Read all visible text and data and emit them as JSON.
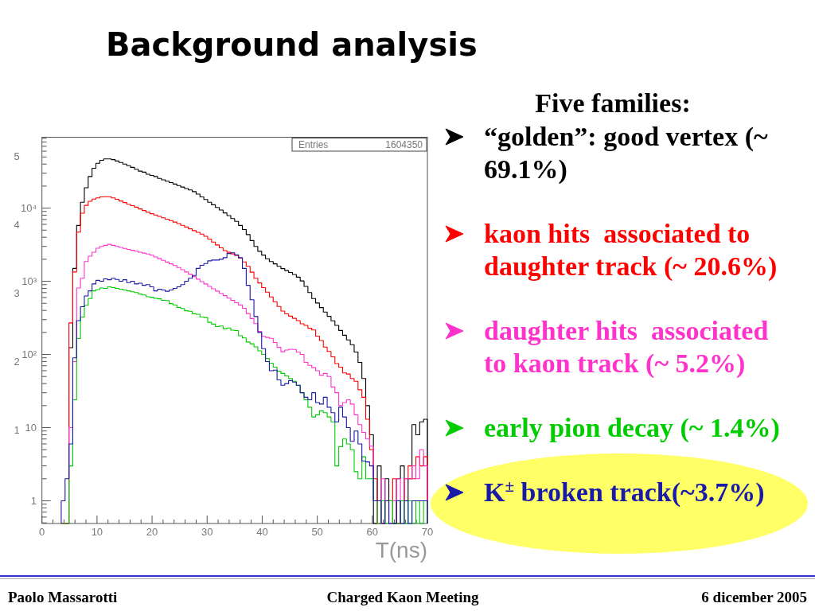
{
  "chart_data": {
    "type": "histogram",
    "title": "Background analysis",
    "xlabel": "T(ns)",
    "legend_title": "Five families:",
    "legend": "right",
    "log": true,
    "annotations": [
      "Entries",
      "1604350",
      "Paolo Massarotti",
      "Charged Kaon Meeting",
      "6 dicember 2005"
    ],
    "xlim": [
      0,
      70
    ],
    "ylim": [
      0.49,
      93000
    ],
    "y2lim": [
      -0.36,
      5.28
    ],
    "y2ticks": [
      1,
      2,
      3,
      4,
      5
    ],
    "xticks": [
      0,
      {
        "value": 2,
        "label": null
      },
      {
        "value": 4,
        "label": null
      },
      {
        "value": 6,
        "label": null
      },
      {
        "value": 8,
        "label": null
      },
      10,
      {
        "value": 12,
        "label": null
      },
      {
        "value": 14,
        "label": null
      },
      {
        "value": 16,
        "label": null
      },
      {
        "value": 18,
        "label": null
      },
      20,
      {
        "value": 22,
        "label": null
      },
      {
        "value": 24,
        "label": null
      },
      {
        "value": 26,
        "label": null
      },
      {
        "value": 28,
        "label": null
      },
      30,
      {
        "value": 32,
        "label": null
      },
      {
        "value": 34,
        "label": null
      },
      {
        "value": 36,
        "label": null
      },
      {
        "value": 38,
        "label": null
      },
      40,
      {
        "value": 42,
        "label": null
      },
      {
        "value": 44,
        "label": null
      },
      {
        "value": 46,
        "label": null
      },
      {
        "value": 48,
        "label": null
      },
      50,
      {
        "value": 52,
        "label": null
      },
      {
        "value": 54,
        "label": null
      },
      {
        "value": 56,
        "label": null
      },
      {
        "value": 58,
        "label": null
      },
      60,
      {
        "value": 62,
        "label": null
      },
      {
        "value": 64,
        "label": null
      },
      {
        "value": 66,
        "label": null
      },
      {
        "value": 68,
        "label": null
      },
      70
    ],
    "yticks": [
      {
        "value": 0.5,
        "label": null
      },
      {
        "value": 0.6,
        "label": null
      },
      {
        "value": 0.7,
        "label": null
      },
      {
        "value": 0.8,
        "label": null
      },
      {
        "value": 0.9,
        "label": null
      },
      1,
      {
        "value": 2,
        "label": null
      },
      {
        "value": 3,
        "label": null
      },
      {
        "value": 4,
        "label": null
      },
      {
        "value": 5,
        "label": null
      },
      {
        "value": 6,
        "label": null
      },
      {
        "value": 7,
        "label": null
      },
      {
        "value": 8,
        "label": null
      },
      {
        "value": 9,
        "label": null
      },
      10,
      {
        "value": 20,
        "label": null
      },
      {
        "value": 30,
        "label": null
      },
      {
        "value": 40,
        "label": null
      },
      {
        "value": 50,
        "label": null
      },
      {
        "value": 60,
        "label": null
      },
      {
        "value": 70,
        "label": null
      },
      {
        "value": 80,
        "label": null
      },
      {
        "value": 90,
        "label": null
      },
      {
        "value": 100,
        "label": "10²"
      },
      {
        "value": 200,
        "label": null
      },
      {
        "value": 300,
        "label": null
      },
      {
        "value": 400,
        "label": null
      },
      {
        "value": 500,
        "label": null
      },
      {
        "value": 600,
        "label": null
      },
      {
        "value": 700,
        "label": null
      },
      {
        "value": 800,
        "label": null
      },
      {
        "value": 900,
        "label": null
      },
      {
        "value": 1000,
        "label": "10³"
      },
      {
        "value": 2000,
        "label": null
      },
      {
        "value": 3000,
        "label": null
      },
      {
        "value": 4000,
        "label": null
      },
      {
        "value": 5000,
        "label": null
      },
      {
        "value": 6000,
        "label": null
      },
      {
        "value": 7000,
        "label": null
      },
      {
        "value": 8000,
        "label": null
      },
      {
        "value": 9000,
        "label": null
      },
      {
        "value": 10000,
        "label": "10⁴"
      },
      {
        "value": 20000,
        "label": null
      },
      {
        "value": 30000,
        "label": null
      },
      {
        "value": 40000,
        "label": null
      },
      {
        "value": 50000,
        "label": null
      },
      {
        "value": 60000,
        "label": null
      },
      {
        "value": 70000,
        "label": null
      },
      {
        "value": 80000,
        "label": null
      },
      {
        "value": 90000,
        "label": null
      }
    ],
    "bins": [
      3.5,
      4.2,
      4.9,
      5.6,
      6.3,
      7,
      7.7,
      8.4,
      9.1,
      9.8,
      10.5,
      11.2,
      11.9,
      12.6,
      13.3,
      14,
      14.7,
      15.4,
      16.1,
      16.8,
      17.5,
      18.2,
      18.9,
      19.6,
      20.3,
      21,
      21.7,
      22.4,
      23.1,
      23.8,
      24.5,
      25.2,
      25.9,
      26.6,
      27.3,
      28,
      28.7,
      29.4,
      30.1,
      30.8,
      31.5,
      32.2,
      32.9,
      33.6,
      34.3,
      35,
      35.7,
      36.4,
      37.1,
      37.8,
      38.5,
      39.2,
      39.9,
      40.6,
      41.3,
      42,
      42.7,
      43.4,
      44.1,
      44.8,
      45.5,
      46.2,
      46.9,
      47.6,
      48.3,
      49,
      49.7,
      50.4,
      51.1,
      51.8,
      52.5,
      53.2,
      53.9,
      54.6,
      55.3,
      56,
      56.7,
      57.4,
      58.1,
      58.8,
      59.5,
      60.2,
      60.9,
      61.6,
      62.3,
      63,
      63.7,
      64.4,
      65.1,
      65.8,
      66.5,
      67.2,
      67.9,
      68.6,
      69.3,
      70
    ],
    "series": [
      {
        "name": "“golden”: good vertex (~ 69.1%)",
        "color": "#000000",
        "values": [
          null,
          null,
          124,
          1500,
          5800,
          12000,
          19000,
          27000,
          35000,
          41000,
          45000,
          47000,
          47000,
          46000,
          44000,
          42000,
          40000,
          38000,
          36000,
          34000,
          32000,
          31000,
          29000,
          28000,
          27000,
          25500,
          24400,
          23300,
          22300,
          21300,
          20300,
          19400,
          18500,
          17700,
          16800,
          15500,
          14200,
          13100,
          12000,
          11100,
          10200,
          9400,
          8600,
          7900,
          7200,
          6600,
          5800,
          5100,
          4350,
          3600,
          3000,
          2570,
          2280,
          2030,
          1860,
          1730,
          1600,
          1490,
          1400,
          1320,
          1240,
          1140,
          1010,
          850,
          700,
          580,
          505,
          437,
          379,
          332,
          288,
          250,
          213,
          183,
          158,
          136,
          108,
          78,
          47,
          20,
          8,
          null,
          3,
          1,
          2,
          1,
          null,
          2,
          3,
          1,
          2,
          11,
          8,
          12,
          13
        ]
      },
      {
        "name": "kaon hits  associated to daughter track (~ 20.6%)",
        "color": "#ff0000",
        "values": [
          null,
          null,
          270,
          1340,
          4700,
          8500,
          10900,
          12400,
          13300,
          13800,
          14200,
          14300,
          14300,
          13800,
          13200,
          12500,
          11900,
          11300,
          10800,
          10300,
          9750,
          9270,
          8820,
          8390,
          8040,
          7710,
          7370,
          7060,
          6750,
          6450,
          6150,
          5820,
          5510,
          5210,
          4930,
          4670,
          4420,
          4120,
          3770,
          3440,
          3140,
          2870,
          2630,
          2490,
          2370,
          2250,
          2070,
          1840,
          1600,
          1330,
          1100,
          950,
          820,
          710,
          610,
          525,
          453,
          391,
          359,
          334,
          312,
          290,
          262,
          250,
          228,
          216,
          178,
          155,
          126,
          110,
          93,
          75,
          67,
          56,
          54,
          47,
          43,
          33,
          26,
          13,
          5,
          2,
          1,
          null,
          1,
          1,
          2,
          null,
          1,
          2,
          3,
          2,
          4,
          3,
          4
        ]
      },
      {
        "name": "daughter hits  associated to kaon track (~ 5.2%)",
        "color": "#ff33cc",
        "values": [
          null,
          null,
          10,
          80,
          810,
          1100,
          1860,
          2200,
          2500,
          2830,
          3000,
          3100,
          3200,
          3100,
          3000,
          2900,
          2810,
          2730,
          2650,
          2580,
          2500,
          2430,
          2360,
          2270,
          2150,
          2040,
          1930,
          1830,
          1730,
          1640,
          1540,
          1440,
          1340,
          1250,
          1160,
          1070,
          990,
          920,
          850,
          790,
          735,
          684,
          636,
          589,
          550,
          510,
          474,
          427,
          362,
          310,
          264,
          206,
          177,
          171,
          166,
          146,
          125,
          109,
          115,
          118,
          117,
          108,
          100,
          78,
          71,
          66,
          60,
          52,
          55,
          50,
          36,
          30,
          20,
          22,
          24,
          21,
          15,
          11,
          8.6,
          7,
          5.6,
          1,
          null,
          2,
          1,
          null,
          1,
          2,
          1,
          2,
          2,
          3,
          2,
          5,
          3
        ]
      },
      {
        "name": "early pion decay (~ 1.4%)",
        "color": "#00cc00",
        "values": [
          null,
          null,
          3,
          24,
          165,
          325,
          470,
          580,
          740,
          770,
          810,
          800,
          840,
          820,
          800,
          780,
          760,
          740,
          720,
          700,
          670,
          650,
          615,
          605,
          585,
          575,
          550,
          545,
          495,
          475,
          440,
          425,
          395,
          390,
          360,
          355,
          325,
          320,
          275,
          260,
          240,
          245,
          225,
          230,
          215,
          212,
          180,
          168,
          148,
          140,
          127,
          112,
          100,
          88,
          76,
          67,
          59,
          55,
          51,
          47,
          43,
          38,
          30,
          24,
          19,
          14,
          15,
          17,
          16,
          14,
          12,
          3,
          5.5,
          7,
          6,
          5,
          2.5,
          2,
          4,
          2,
          2,
          1,
          null,
          1,
          null,
          1,
          null,
          null,
          1,
          null,
          1,
          null,
          1,
          null,
          1
        ]
      },
      {
        "name": "K$^{±}$ broken track(~3.7%)",
        "color": "#1a1aaa",
        "values": [
          1,
          2,
          6,
          90,
          290,
          450,
          630,
          740,
          920,
          1030,
          1000,
          1080,
          1050,
          1100,
          1060,
          1000,
          1050,
          960,
          1000,
          920,
          940,
          880,
          900,
          840,
          740,
          780,
          760,
          730,
          760,
          800,
          840,
          900,
          1000,
          1100,
          1200,
          1500,
          1650,
          1750,
          1900,
          1950,
          1950,
          2000,
          2100,
          2400,
          2450,
          2300,
          2100,
          1500,
          880,
          560,
          330,
          200,
          120,
          80,
          60,
          61,
          45,
          38,
          40,
          44,
          42,
          38,
          30,
          26,
          24,
          30,
          22,
          21,
          26,
          19,
          16,
          12,
          19,
          14,
          10,
          6.5,
          9,
          6,
          3.5,
          3.4,
          3,
          1,
          1,
          null,
          1,
          null,
          null,
          1,
          null,
          1,
          null,
          1,
          1,
          1,
          1
        ]
      }
    ]
  }
}
